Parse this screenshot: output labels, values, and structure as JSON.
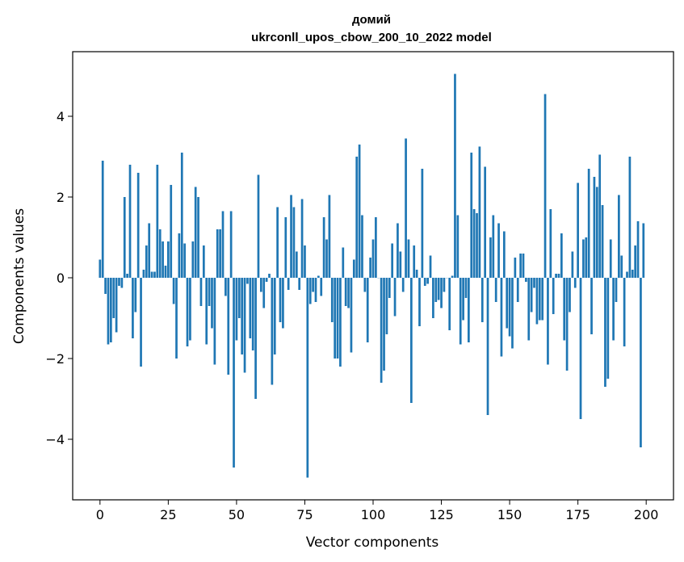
{
  "chart_data": {
    "type": "bar",
    "title": "домий",
    "subtitle": "ukrconll_upos_cbow_200_10_2022 model",
    "xlabel": "Vector components",
    "ylabel": "Components values",
    "xlim": [
      -10,
      210
    ],
    "ylim": [
      -5.5,
      5.6
    ],
    "xticks": [
      0,
      25,
      50,
      75,
      100,
      125,
      150,
      175,
      200
    ],
    "yticks": [
      -4,
      -2,
      0,
      2,
      4
    ],
    "xtick_labels": [
      "0",
      "25",
      "50",
      "75",
      "100",
      "125",
      "150",
      "175",
      "200"
    ],
    "ytick_labels": [
      "−4",
      "−2",
      "0",
      "2",
      "4"
    ],
    "grid": false,
    "color": "#1f77b4",
    "values": [
      0.45,
      2.9,
      -0.4,
      -1.65,
      -1.6,
      -1.0,
      -1.35,
      -0.2,
      -0.25,
      2.0,
      0.1,
      2.8,
      -1.5,
      -0.85,
      2.6,
      -2.2,
      0.2,
      0.8,
      1.35,
      0.15,
      0.15,
      2.8,
      1.2,
      0.9,
      0.3,
      0.9,
      2.3,
      -0.65,
      -2.0,
      1.1,
      3.1,
      0.85,
      -1.7,
      -1.55,
      0.9,
      2.25,
      2.0,
      -0.7,
      0.8,
      -1.65,
      -0.7,
      -1.25,
      -2.15,
      1.2,
      1.2,
      1.65,
      -0.45,
      -2.4,
      1.65,
      -4.7,
      -1.55,
      -1.0,
      -1.9,
      -2.35,
      -0.15,
      -1.5,
      -1.8,
      -3.0,
      2.55,
      -0.35,
      -0.75,
      -0.1,
      0.1,
      -2.65,
      -1.9,
      1.75,
      -1.1,
      -1.25,
      1.5,
      -0.3,
      2.05,
      1.75,
      0.65,
      -0.3,
      1.95,
      0.8,
      -4.95,
      -0.65,
      -0.35,
      -0.6,
      0.05,
      -0.45,
      1.5,
      0.95,
      2.05,
      -1.1,
      -2.0,
      -2.0,
      -2.2,
      0.75,
      -0.7,
      -0.75,
      -1.85,
      0.45,
      3.0,
      3.3,
      1.55,
      -0.35,
      -1.6,
      0.5,
      0.95,
      1.5,
      0.0,
      -2.6,
      -2.3,
      -1.4,
      -0.5,
      0.85,
      -0.95,
      1.35,
      0.65,
      -0.35,
      3.45,
      0.95,
      -3.1,
      0.8,
      0.2,
      -1.2,
      2.7,
      -0.2,
      -0.15,
      0.55,
      -1.0,
      -0.6,
      -0.55,
      -0.75,
      -0.35,
      0.0,
      -1.3,
      0.05,
      5.05,
      1.55,
      -1.65,
      -1.05,
      -0.5,
      -1.6,
      3.1,
      1.7,
      1.6,
      3.25,
      -1.1,
      2.75,
      -3.4,
      1.0,
      1.55,
      -0.6,
      1.35,
      -1.95,
      1.15,
      -1.25,
      -1.45,
      -1.75,
      0.5,
      -0.6,
      0.6,
      0.6,
      -0.1,
      -1.55,
      -0.85,
      -0.25,
      -1.15,
      -1.05,
      -1.05,
      4.55,
      -2.15,
      1.7,
      -0.9,
      0.1,
      0.1,
      1.1,
      -1.55,
      -2.3,
      -0.85,
      0.65,
      -0.25,
      2.35,
      -3.5,
      0.95,
      1.0,
      2.7,
      -1.4,
      2.5,
      2.25,
      3.05,
      1.8,
      -2.7,
      -2.5,
      0.95,
      -1.55,
      -0.6,
      2.05,
      0.55,
      -1.7,
      0.15,
      3.0,
      0.2,
      0.8,
      1.4,
      -4.2,
      1.35
    ]
  }
}
